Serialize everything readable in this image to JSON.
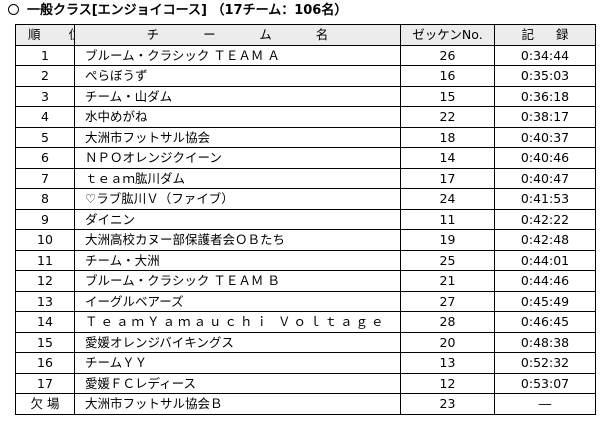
{
  "heading": "一般クラス[エンジョイコース] （17チーム：106名）",
  "columns": {
    "rank": "順 位",
    "team": "チーム名",
    "bib": "ゼッケンNo.",
    "time": "記録"
  },
  "rows": [
    {
      "rank": "1",
      "team": "ブルーム・クラシック ＴＥＡＭ Ａ",
      "bib": "26",
      "time": "0:34:44"
    },
    {
      "rank": "2",
      "team": "ぺらぼうず",
      "bib": "16",
      "time": "0:35:03"
    },
    {
      "rank": "3",
      "team": "チーム・山ダム",
      "bib": "15",
      "time": "0:36:18"
    },
    {
      "rank": "4",
      "team": "水中めがね",
      "bib": "22",
      "time": "0:38:17"
    },
    {
      "rank": "5",
      "team": "大洲市フットサル協会",
      "bib": "18",
      "time": "0:40:37"
    },
    {
      "rank": "6",
      "team": "ＮＰＯオレンジクイーン",
      "bib": "14",
      "time": "0:40:46"
    },
    {
      "rank": "7",
      "team": "ｔｅａｍ肱川ダム",
      "bib": "17",
      "time": "0:40:47"
    },
    {
      "rank": "8",
      "team": "♡ラブ肱川Ｖ（ファイブ）",
      "bib": "24",
      "time": "0:41:53"
    },
    {
      "rank": "9",
      "team": "ダイニン",
      "bib": "11",
      "time": "0:42:22"
    },
    {
      "rank": "10",
      "team": "大洲高校カヌー部保護者会ＯＢたち",
      "bib": "19",
      "time": "0:42:48"
    },
    {
      "rank": "11",
      "team": "チーム・大洲",
      "bib": "25",
      "time": "0:44:01"
    },
    {
      "rank": "12",
      "team": "ブルーム・クラシック ＴＥＡＭ Ｂ",
      "bib": "21",
      "time": "0:44:46"
    },
    {
      "rank": "13",
      "team": "イーグルベアーズ",
      "bib": "27",
      "time": "0:45:49"
    },
    {
      "rank": "14",
      "team": "ＴｅａｍＹａｍａｕｃｈｉ Ｖｏｌｔａｇｅ",
      "bib": "28",
      "time": "0:46:45"
    },
    {
      "rank": "15",
      "team": "愛媛オレンジバイキングス",
      "bib": "20",
      "time": "0:48:38"
    },
    {
      "rank": "16",
      "team": "チームＹＹ",
      "bib": "13",
      "time": "0:52:32"
    },
    {
      "rank": "17",
      "team": "愛媛ＦＣレディース",
      "bib": "12",
      "time": "0:53:07"
    },
    {
      "rank": "欠 場",
      "team": "大洲市フットサル協会Ｂ",
      "bib": "23",
      "time": "―"
    }
  ]
}
